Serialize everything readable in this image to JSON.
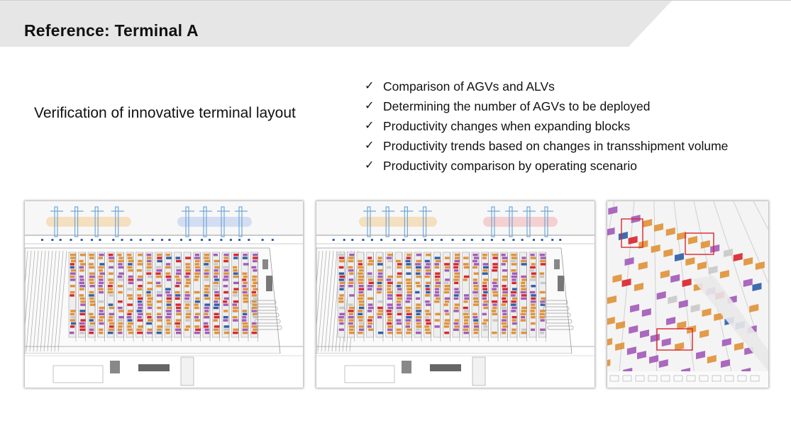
{
  "header": {
    "title": "Reference: Terminal A",
    "band_color": "#e6e6e6"
  },
  "main": {
    "subtitle": "Verification of innovative terminal layout",
    "bullets": [
      "Comparison of AGVs and ALVs",
      "Determining the number of AGVs to be deployed",
      "Productivity changes when expanding blocks",
      "Productivity trends based on changes in transshipment volume",
      "Productivity comparison by operating scenario"
    ],
    "check_icon": "check-icon"
  },
  "images": [
    {
      "name": "terminal-layout-simulation-1",
      "kind": "top-down terminal simulation"
    },
    {
      "name": "terminal-layout-simulation-2",
      "kind": "top-down terminal simulation"
    },
    {
      "name": "terminal-3d-perspective",
      "kind": "3d perspective container yard"
    }
  ],
  "colors": {
    "container_orange": "#e0923a",
    "container_purple": "#a35bb8",
    "container_red": "#d9262f",
    "container_blue": "#2f5fa8",
    "crane_blue": "#6fa8dc"
  }
}
